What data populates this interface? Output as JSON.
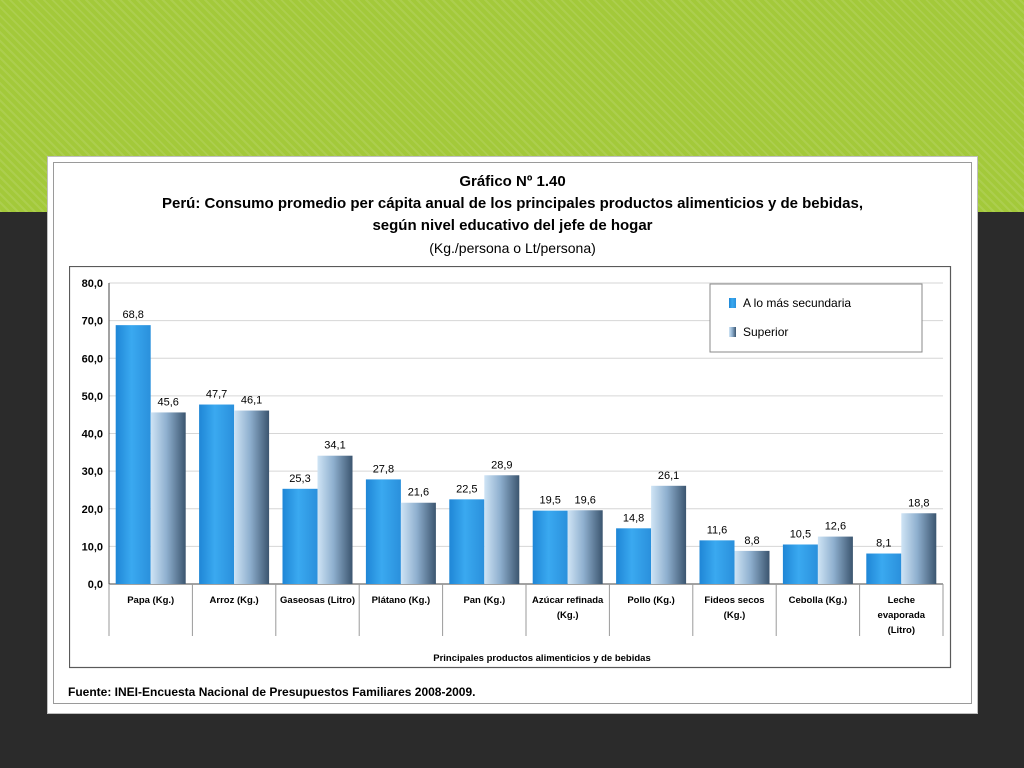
{
  "slide": {
    "accent_color": "#a3c93a",
    "background_color": "#2b2b2b"
  },
  "chart_data": {
    "type": "bar",
    "title": "Gráfico Nº 1.40",
    "subtitle_lines": [
      "Perú: Consumo promedio per cápita anual de los principales productos alimenticios y de bebidas,",
      "según nivel educativo  del jefe de hogar",
      "(Kg./persona o Lt/persona)"
    ],
    "xlabel": "Principales productos alimenticios y de bebidas",
    "ylabel": "",
    "ylim": [
      0,
      80
    ],
    "ytick_step": 10,
    "ytick_labels": [
      "0,0",
      "10,0",
      "20,0",
      "30,0",
      "40,0",
      "50,0",
      "60,0",
      "70,0",
      "80,0"
    ],
    "grid": true,
    "legend_position": "top-right",
    "categories": [
      "Papa (Kg.)",
      "Arroz (Kg.)",
      "Gaseosas (Litro)",
      "Plátano (Kg.)",
      "Pan (Kg.)",
      "Azúcar refinada (Kg.)",
      "Pollo (Kg.)",
      "Fideos secos (Kg.)",
      "Cebolla (Kg.)",
      "Leche evaporada (Litro)"
    ],
    "category_lines": [
      [
        "Papa (Kg.)"
      ],
      [
        "Arroz (Kg.)"
      ],
      [
        "Gaseosas (Litro)"
      ],
      [
        "Plátano (Kg.)"
      ],
      [
        "Pan (Kg.)"
      ],
      [
        "Azúcar refinada",
        "(Kg.)"
      ],
      [
        "Pollo (Kg.)"
      ],
      [
        "Fideos secos",
        "(Kg.)"
      ],
      [
        "Cebolla (Kg.)"
      ],
      [
        "Leche",
        "evaporada",
        "(Litro)"
      ]
    ],
    "series": [
      {
        "name": "A lo más secundaria",
        "color": "#2e9de8",
        "values": [
          68.8,
          47.7,
          25.3,
          27.8,
          22.5,
          19.5,
          14.8,
          11.6,
          10.5,
          8.1
        ],
        "labels": [
          "68,8",
          "47,7",
          "25,3",
          "27,8",
          "22,5",
          "19,5",
          "14,8",
          "11,6",
          "10,5",
          "8,1"
        ]
      },
      {
        "name": "Superior",
        "color": "#6d8fb3",
        "values": [
          45.6,
          46.1,
          34.1,
          21.6,
          28.9,
          19.6,
          26.1,
          8.8,
          12.6,
          18.8
        ],
        "labels": [
          "45,6",
          "46,1",
          "34,1",
          "21,6",
          "28,9",
          "19,6",
          "26,1",
          "8,8",
          "12,6",
          "18,8"
        ]
      }
    ],
    "source": "Fuente: INEI-Encuesta Nacional de Presupuestos Familiares 2008-2009."
  }
}
